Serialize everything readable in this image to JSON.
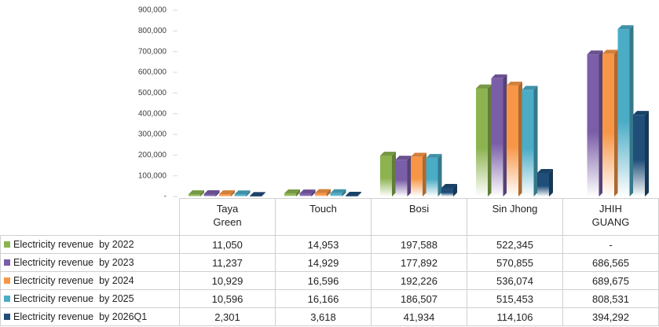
{
  "chart_data": {
    "type": "bar3d",
    "categories": [
      "Taya Green",
      "Touch",
      "Bosi",
      "Sin Jhong",
      "JHIH GUANG"
    ],
    "series": [
      {
        "name": "Electricity revenue  by 2022",
        "color": "#8cb350",
        "values": [
          11050,
          14953,
          197588,
          522345,
          null
        ],
        "value_labels": [
          "11,050",
          "14,953",
          "197,588",
          "522,345",
          "-"
        ]
      },
      {
        "name": "Electricity revenue  by 2023",
        "color": "#7b5ea8",
        "values": [
          11237,
          14929,
          177892,
          570855,
          686565
        ],
        "value_labels": [
          "11,237",
          "14,929",
          "177,892",
          "570,855",
          "686,565"
        ]
      },
      {
        "name": "Electricity revenue  by 2024",
        "color": "#f79646",
        "values": [
          10929,
          16596,
          192226,
          536074,
          689675
        ],
        "value_labels": [
          "10,929",
          "16,596",
          "192,226",
          "536,074",
          "689,675"
        ]
      },
      {
        "name": "Electricity revenue  by 2025",
        "color": "#4bacc6",
        "values": [
          10596,
          16166,
          186507,
          515453,
          808531
        ],
        "value_labels": [
          "10,596",
          "16,166",
          "186,507",
          "515,453",
          "808,531"
        ]
      },
      {
        "name": "Electricity revenue  by 2026Q1",
        "color": "#1f4e79",
        "values": [
          2301,
          3618,
          41934,
          114106,
          394292
        ],
        "value_labels": [
          "2,301",
          "3,618",
          "41,934",
          "114,106",
          "394,292"
        ]
      }
    ],
    "ylim": [
      0,
      900000
    ],
    "yticks": [
      {
        "value": 0,
        "label": "-"
      },
      {
        "value": 100000,
        "label": "100,000"
      },
      {
        "value": 200000,
        "label": "200,000"
      },
      {
        "value": 300000,
        "label": "300,000"
      },
      {
        "value": 400000,
        "label": "400,000"
      },
      {
        "value": 500000,
        "label": "500,000"
      },
      {
        "value": 600000,
        "label": "600,000"
      },
      {
        "value": 700000,
        "label": "700,000"
      },
      {
        "value": 800000,
        "label": "800,000"
      },
      {
        "value": 900000,
        "label": "900,000"
      }
    ],
    "grid": false
  }
}
